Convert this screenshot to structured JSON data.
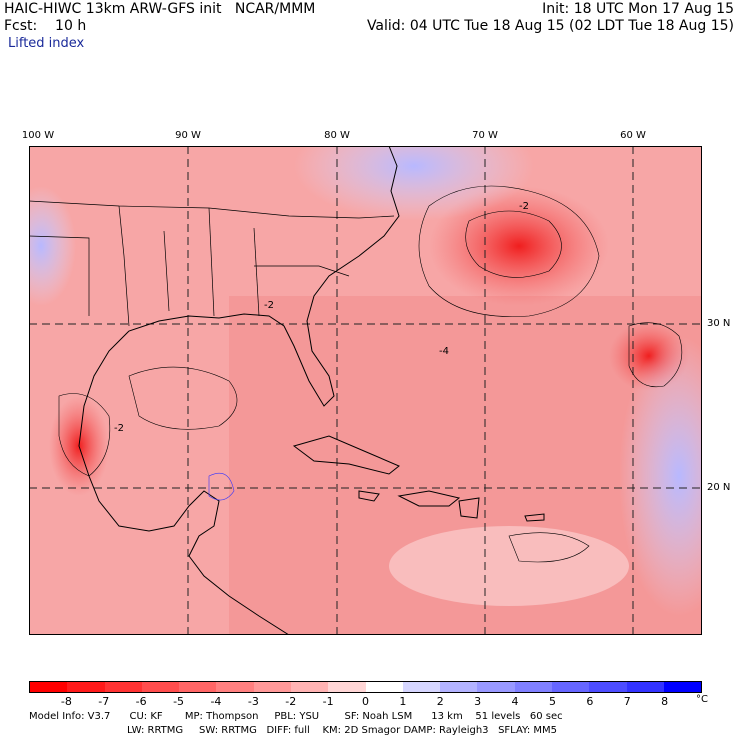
{
  "header": {
    "title_left": "HAIC-HIWC 13km ARW-GFS init   NCAR/MMM",
    "init": "Init: 18 UTC Mon 17 Aug 15",
    "fcst": "Fcst:    10 h",
    "valid": "Valid: 04 UTC Tue 18 Aug 15 (02 LDT Tue 18 Aug 15)",
    "field": "Lifted index"
  },
  "map": {
    "lon_labels": [
      "100 W",
      "90 W",
      "80 W",
      "70 W",
      "60 W"
    ],
    "lat_labels": [
      "30 N",
      "20 N"
    ],
    "contour_labels": [
      "-2",
      "-2",
      "-4",
      "-2"
    ]
  },
  "colorbar": {
    "ticks": [
      "-8",
      "-7",
      "-6",
      "-5",
      "-4",
      "-3",
      "-2",
      "-1",
      "0",
      "1",
      "2",
      "3",
      "4",
      "5",
      "6",
      "7",
      "8"
    ],
    "unit": "°C",
    "colors": [
      "#ff0000",
      "#ff1a1a",
      "#ff3333",
      "#ff4d4d",
      "#ff6666",
      "#ff8080",
      "#ff9999",
      "#ffb3b3",
      "#ffd6d6",
      "#ffffff",
      "#d6d6ff",
      "#b3b3ff",
      "#9999ff",
      "#8080ff",
      "#6666ff",
      "#4d4dff",
      "#3333ff",
      "#0000ff"
    ]
  },
  "model_info": {
    "line1": "Model Info: V3.7      CU: KF       MP: Thompson     PBL: YSU        SF: Noah LSM      13 km    51 levels   60 sec",
    "line2": "LW: RRTMG     SW: RRTMG   DIFF: full    KM: 2D Smagor DAMP: Rayleigh3   SFLAY: MM5"
  }
}
